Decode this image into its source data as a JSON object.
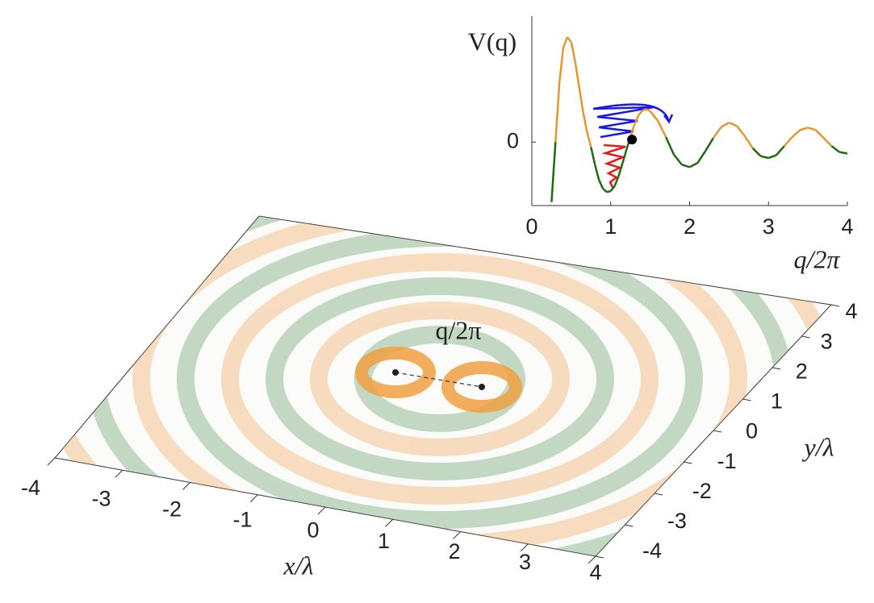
{
  "chart_data": [
    {
      "type": "line",
      "ylabel": "V(q)",
      "xlabel": "q/2π",
      "x": [
        0.25,
        0.3,
        0.35,
        0.4,
        0.45,
        0.5,
        0.55,
        0.6,
        0.65,
        0.7,
        0.75,
        0.8,
        0.85,
        0.9,
        0.95,
        1.0,
        1.05,
        1.1,
        1.15,
        1.2,
        1.25,
        1.3,
        1.35,
        1.4,
        1.45,
        1.5,
        1.6,
        1.7,
        1.8,
        1.9,
        2.0,
        2.1,
        2.2,
        2.3,
        2.4,
        2.5,
        2.6,
        2.7,
        2.8,
        2.9,
        3.0,
        3.1,
        3.2,
        3.3,
        3.4,
        3.5,
        3.6,
        3.7,
        3.8,
        3.9,
        4.0
      ],
      "values": [
        -1.2,
        0.0,
        1.2,
        1.9,
        2.1,
        2.0,
        1.6,
        1.1,
        0.6,
        0.2,
        -0.1,
        -0.45,
        -0.75,
        -0.93,
        -1.0,
        -0.98,
        -0.88,
        -0.68,
        -0.42,
        -0.15,
        0.1,
        0.35,
        0.53,
        0.63,
        0.66,
        0.62,
        0.42,
        0.1,
        -0.25,
        -0.45,
        -0.5,
        -0.42,
        -0.18,
        0.08,
        0.3,
        0.39,
        0.32,
        0.12,
        -0.12,
        -0.28,
        -0.32,
        -0.26,
        -0.08,
        0.1,
        0.24,
        0.29,
        0.24,
        0.08,
        -0.08,
        -0.2,
        -0.23
      ],
      "positive_color": "#e8952e",
      "negative_color": "#1f6b12",
      "marker": {
        "x": 1.27,
        "value": 0.05,
        "color": "#000000"
      },
      "xlim": [
        0,
        4
      ],
      "xticks": [
        0,
        1,
        2,
        3,
        4
      ],
      "ylim": [
        -1.27,
        2.52
      ],
      "yticks": [
        0
      ]
    },
    {
      "type": "surface",
      "xlabel": "x/λ",
      "ylabel": "y/λ",
      "annotation": "q/2π",
      "xlim": [
        -4,
        4
      ],
      "ylim": [
        -4,
        4
      ],
      "xticks": [
        -4,
        -3,
        -2,
        -1,
        0,
        1,
        2,
        3,
        4
      ],
      "yticks": [
        -4,
        -3,
        -2,
        -1,
        0,
        1,
        2,
        3,
        4
      ]
    }
  ]
}
